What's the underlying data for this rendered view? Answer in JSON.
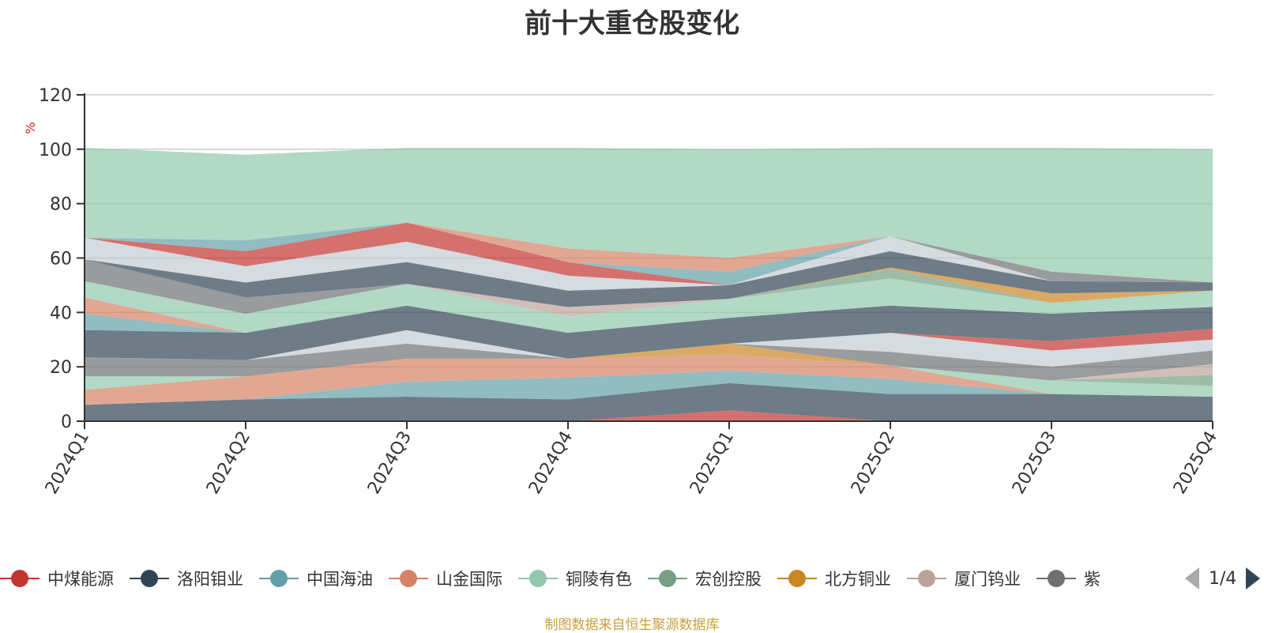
{
  "chart_data": {
    "type": "area",
    "stacked": true,
    "title": "前十大重仓股变化",
    "ylabel": "%",
    "ylim": [
      0,
      120
    ],
    "yticks": [
      0,
      20,
      40,
      60,
      80,
      100,
      120
    ],
    "categories": [
      "2024Q1",
      "2024Q2",
      "2024Q3",
      "2024Q4",
      "2025Q1",
      "2025Q2",
      "2025Q3",
      "2025Q4"
    ],
    "grid": true,
    "series": [
      {
        "name": "中煤能源",
        "color": "#c23531",
        "values": [
          0,
          0,
          0,
          0,
          4,
          0,
          0,
          0
        ]
      },
      {
        "name": "洛阳钼业",
        "color": "#2f4554",
        "values": [
          6,
          8,
          9,
          8,
          10,
          10,
          10,
          9
        ]
      },
      {
        "name": "中国海油",
        "color": "#61a0a8",
        "values": [
          0,
          0,
          5.5,
          8,
          4.5,
          5.5,
          0,
          0
        ]
      },
      {
        "name": "山金国际",
        "color": "#d48265",
        "values": [
          5.5,
          8.5,
          8.5,
          7,
          6,
          5,
          0,
          0
        ]
      },
      {
        "name": "铜陵有色",
        "color": "#91c7ae",
        "values": [
          5,
          0,
          0,
          0,
          0,
          0,
          5,
          4
        ]
      },
      {
        "name": "宏创控股",
        "color": "#749f83",
        "values": [
          0,
          0,
          0,
          0,
          0,
          0,
          0,
          4
        ]
      },
      {
        "name": "北方铜业",
        "color": "#ca8622",
        "values": [
          0,
          0,
          0,
          0,
          4,
          0,
          0,
          0
        ]
      },
      {
        "name": "厦门钨业",
        "color": "#bda29a",
        "values": [
          0,
          0,
          0,
          0,
          0,
          0,
          0,
          4
        ]
      },
      {
        "name": "",
        "color": "#6e7074",
        "values": [
          7,
          6,
          5.5,
          0,
          0,
          5,
          5,
          5
        ]
      },
      {
        "name": "",
        "color": "#c4ccd3",
        "values": [
          0,
          0,
          5,
          0,
          0,
          7,
          6,
          4
        ]
      },
      {
        "name": "",
        "color": "#c23531",
        "values": [
          0,
          0,
          0,
          0,
          0,
          0,
          3.5,
          4
        ]
      },
      {
        "name": "",
        "color": "#2f4554",
        "values": [
          10,
          10,
          9,
          9.5,
          9.5,
          10,
          10,
          8
        ]
      },
      {
        "name": "",
        "color": "#91c7ae",
        "values": [
          0,
          0,
          8,
          6,
          7,
          10,
          4,
          6
        ]
      },
      {
        "name": "",
        "color": "#749f83",
        "values": [
          0,
          0,
          0,
          0,
          0,
          3.5,
          0,
          0
        ]
      },
      {
        "name": "",
        "color": "#ca8622",
        "values": [
          0,
          0,
          0,
          0,
          0,
          0.5,
          3.5,
          0
        ]
      },
      {
        "name": "",
        "color": "#61a0a8",
        "values": [
          6,
          0,
          0,
          0,
          0,
          0,
          0,
          0
        ]
      },
      {
        "name": "",
        "color": "#d48265",
        "values": [
          6,
          0,
          0,
          0,
          0,
          0,
          0,
          0
        ]
      },
      {
        "name": "",
        "color": "#91c7ae",
        "values": [
          6,
          7,
          0,
          0,
          0,
          0,
          0,
          0
        ]
      },
      {
        "name": "",
        "color": "#6e7074",
        "values": [
          8,
          6,
          0,
          0,
          0,
          0,
          0,
          0
        ]
      },
      {
        "name": "",
        "color": "#bda29a",
        "values": [
          0,
          0,
          0,
          3.5,
          0,
          0,
          0,
          0
        ]
      },
      {
        "name": "",
        "color": "#2f4554",
        "values": [
          0,
          5.5,
          8,
          6,
          5,
          6,
          4.5,
          3
        ]
      },
      {
        "name": "",
        "color": "#c4ccd3",
        "values": [
          8,
          6,
          7.5,
          5.5,
          0,
          5.5,
          0,
          0
        ]
      },
      {
        "name": "",
        "color": "#c23531",
        "values": [
          0,
          5.5,
          7,
          5,
          0,
          0,
          0,
          0
        ]
      },
      {
        "name": "",
        "color": "#61a0a8",
        "values": [
          0,
          4,
          0,
          0,
          5,
          0,
          0,
          0
        ]
      },
      {
        "name": "",
        "color": "#d48265",
        "values": [
          0,
          0,
          0,
          5,
          5,
          0,
          0,
          0
        ]
      },
      {
        "name": "",
        "color": "#6e7074",
        "values": [
          0,
          0,
          0,
          0,
          0,
          0,
          3.5,
          0
        ]
      },
      {
        "name": "",
        "color": "#91c7ae",
        "values": [
          33,
          31.5,
          27.5,
          37,
          40,
          32.5,
          45.5,
          49
        ]
      }
    ]
  },
  "legend": {
    "items": [
      {
        "label": "中煤能源",
        "color": "#c23531"
      },
      {
        "label": "洛阳钼业",
        "color": "#2f4554"
      },
      {
        "label": "中国海油",
        "color": "#61a0a8"
      },
      {
        "label": "山金国际",
        "color": "#d48265"
      },
      {
        "label": "铜陵有色",
        "color": "#91c7ae"
      },
      {
        "label": "宏创控股",
        "color": "#749f83"
      },
      {
        "label": "北方铜业",
        "color": "#ca8622"
      },
      {
        "label": "厦门钨业",
        "color": "#bda29a"
      },
      {
        "label": "紫",
        "color": "#6e7074"
      }
    ],
    "page_indicator": "1/4"
  },
  "footer": {
    "source": "制图数据来自恒生聚源数据库"
  }
}
